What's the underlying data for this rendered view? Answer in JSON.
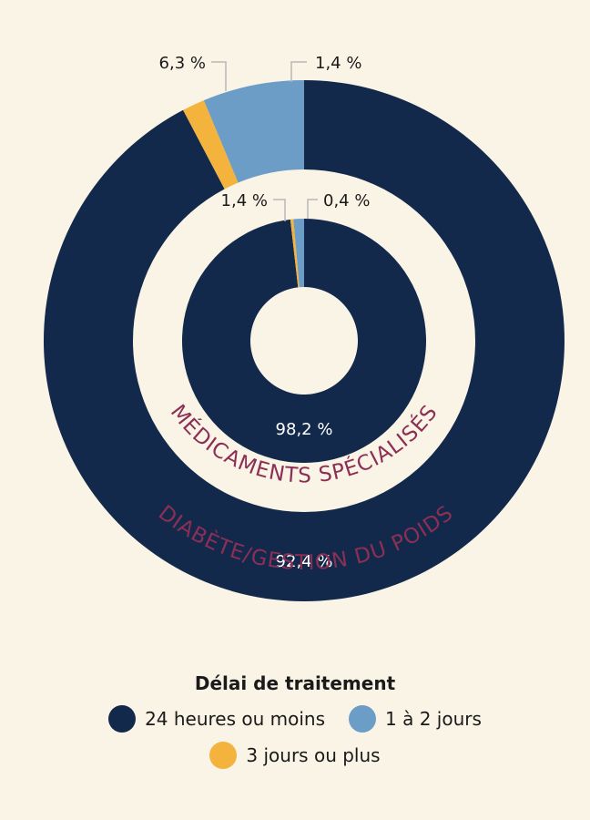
{
  "chart_data": {
    "type": "pie",
    "legend_title": "Délai de traitement",
    "legend_position": "bottom",
    "categories": [
      "24 heures ou moins",
      "1 à 2 jours",
      "3 jours ou plus"
    ],
    "colors": [
      "#13294b",
      "#6c9dc6",
      "#f3b33d"
    ],
    "series": [
      {
        "name": "DIABÈTE/GESTION DU POIDS",
        "values": [
          92.4,
          6.3,
          1.4
        ],
        "labels": [
          "92,4 %",
          "6,3 %",
          "1,4 %"
        ]
      },
      {
        "name": "MÉDICAMENTS SPÉCIALISÉS",
        "values": [
          98.2,
          1.4,
          0.4
        ],
        "labels": [
          "98,2 %",
          "1,4 %",
          "0,4 %"
        ]
      }
    ]
  }
}
